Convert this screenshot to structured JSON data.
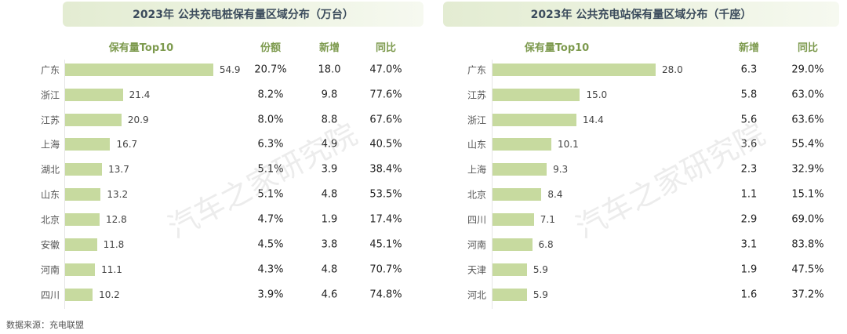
{
  "chart_data": [
    {
      "type": "bar",
      "title": "2023年 公共充电桩保有量区域分布（万台）",
      "headers": {
        "bar": "保有量Top10",
        "share": "份额",
        "new": "新增",
        "yoy": "同比"
      },
      "categories": [
        "广东",
        "浙江",
        "江苏",
        "上海",
        "湖北",
        "山东",
        "北京",
        "安徽",
        "河南",
        "四川"
      ],
      "values": [
        54.9,
        21.4,
        20.9,
        16.7,
        13.7,
        13.2,
        12.8,
        11.8,
        11.1,
        10.2
      ],
      "share": [
        "20.7%",
        "8.2%",
        "8.0%",
        "6.3%",
        "5.1%",
        "5.1%",
        "4.7%",
        "4.5%",
        "4.3%",
        "3.9%"
      ],
      "new": [
        "18.0",
        "9.8",
        "8.8",
        "4.9",
        "3.9",
        "4.8",
        "1.9",
        "3.8",
        "4.8",
        "4.6"
      ],
      "yoy": [
        "47.0%",
        "77.6%",
        "67.6%",
        "40.5%",
        "38.4%",
        "53.5%",
        "17.4%",
        "45.1%",
        "70.7%",
        "74.8%"
      ]
    },
    {
      "type": "bar",
      "title": "2023年 公共充电站保有量区域分布（千座）",
      "headers": {
        "bar": "保有量Top10",
        "new": "新增",
        "yoy": "同比"
      },
      "categories": [
        "广东",
        "江苏",
        "浙江",
        "山东",
        "上海",
        "北京",
        "四川",
        "河南",
        "天津",
        "河北"
      ],
      "values": [
        28.0,
        15.0,
        14.4,
        10.1,
        9.3,
        8.4,
        7.1,
        6.8,
        5.9,
        5.9
      ],
      "new": [
        "6.3",
        "5.8",
        "5.6",
        "3.6",
        "2.3",
        "1.1",
        "2.9",
        "3.1",
        "1.9",
        "1.6"
      ],
      "yoy": [
        "29.0%",
        "63.0%",
        "63.6%",
        "55.4%",
        "32.9%",
        "15.1%",
        "69.0%",
        "83.8%",
        "47.5%",
        "37.2%"
      ]
    }
  ],
  "source": "数据来源：充电联盟",
  "watermark": "汽车之家研究院",
  "colors": {
    "bar": "#c7da9f",
    "header": "#7d9a4e",
    "title": "#3b4b5c"
  }
}
